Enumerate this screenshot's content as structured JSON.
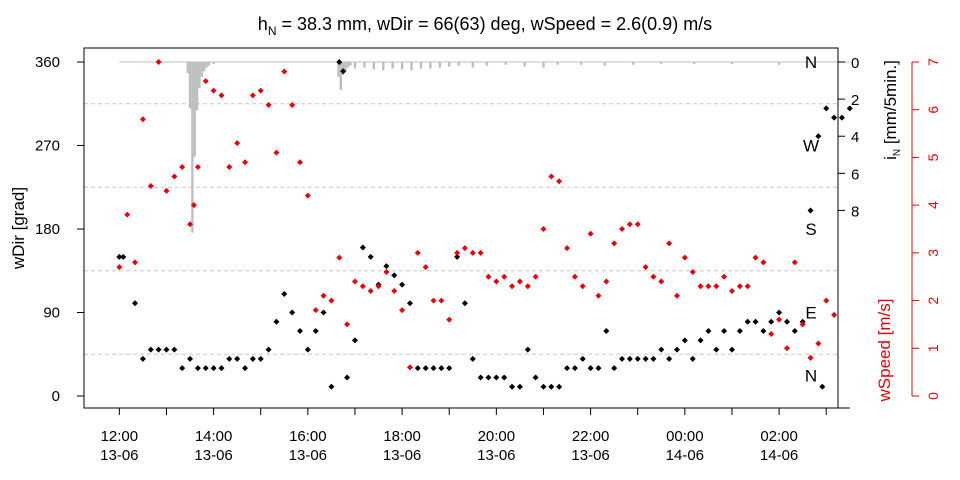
{
  "chart_data": {
    "type": "scatter",
    "title": {
      "main": "h",
      "sub": "N",
      "rest": " = 38.3 mm, wDir = 66(63) deg, wSpeed = 2.6(0.9) m/s"
    },
    "ylabel_left": "wDir [grad]",
    "ylabel_right_red": "wSpeed [m/s]",
    "ylabel_right_rain": {
      "main": "i",
      "sub": "N",
      "rest": " [mm/5min.]"
    },
    "x_ticks": [
      {
        "hour": 0,
        "l1": "12:00",
        "l2": "13-06"
      },
      {
        "hour": 2,
        "l1": "14:00",
        "l2": "13-06"
      },
      {
        "hour": 4,
        "l1": "16:00",
        "l2": "13-06"
      },
      {
        "hour": 6,
        "l1": "18:00",
        "l2": "13-06"
      },
      {
        "hour": 8,
        "l1": "20:00",
        "l2": "13-06"
      },
      {
        "hour": 10,
        "l1": "22:00",
        "l2": "13-06"
      },
      {
        "hour": 12,
        "l1": "00:00",
        "l2": "14-06"
      },
      {
        "hour": 14,
        "l1": "02:00",
        "l2": "14-06"
      }
    ],
    "x_range_hours": [
      -0.75,
      15.25
    ],
    "wdir_ticks": [
      0,
      90,
      180,
      270,
      360
    ],
    "wdir_range": [
      0,
      360
    ],
    "rain_ticks": [
      0,
      2,
      4,
      6,
      8
    ],
    "rain_range": [
      0,
      18
    ],
    "speed_ticks": [
      0,
      1,
      2,
      3,
      4,
      5,
      6,
      7
    ],
    "speed_range": [
      0,
      7
    ],
    "compass_labels": [
      {
        "deg": 22,
        "label": "N"
      },
      {
        "deg": 90,
        "label": "E"
      },
      {
        "deg": 180,
        "label": "S"
      },
      {
        "deg": 270,
        "label": "W"
      },
      {
        "deg": 360,
        "label": "N"
      }
    ],
    "sector_lines_deg": [
      45,
      135,
      225,
      315
    ],
    "colors": {
      "direction": "#000000",
      "speed": "#e8000b",
      "rain": "#bebebe",
      "grid": "#c8c8c8"
    },
    "wind_direction": [
      [
        0,
        150
      ],
      [
        0.083,
        150
      ],
      [
        0.333,
        100
      ],
      [
        0.5,
        40
      ],
      [
        0.667,
        50
      ],
      [
        0.833,
        50
      ],
      [
        1.0,
        50
      ],
      [
        1.167,
        50
      ],
      [
        1.333,
        30
      ],
      [
        1.5,
        40
      ],
      [
        1.667,
        30
      ],
      [
        1.833,
        30
      ],
      [
        2.0,
        30
      ],
      [
        2.167,
        30
      ],
      [
        2.333,
        40
      ],
      [
        2.5,
        40
      ],
      [
        2.667,
        30
      ],
      [
        2.833,
        40
      ],
      [
        3.0,
        40
      ],
      [
        3.167,
        50
      ],
      [
        3.333,
        80
      ],
      [
        3.5,
        110
      ],
      [
        3.667,
        90
      ],
      [
        3.833,
        70
      ],
      [
        4.0,
        50
      ],
      [
        4.167,
        70
      ],
      [
        4.333,
        90
      ],
      [
        4.5,
        10
      ],
      [
        4.667,
        360
      ],
      [
        4.75,
        350
      ],
      [
        4.833,
        20
      ],
      [
        5.0,
        60
      ],
      [
        5.167,
        160
      ],
      [
        5.333,
        150
      ],
      [
        5.5,
        120
      ],
      [
        5.667,
        140
      ],
      [
        5.833,
        130
      ],
      [
        6.0,
        120
      ],
      [
        6.167,
        100
      ],
      [
        6.333,
        30
      ],
      [
        6.5,
        30
      ],
      [
        6.667,
        30
      ],
      [
        6.833,
        30
      ],
      [
        7.0,
        30
      ],
      [
        7.167,
        150
      ],
      [
        7.333,
        100
      ],
      [
        7.5,
        40
      ],
      [
        7.667,
        20
      ],
      [
        7.833,
        20
      ],
      [
        8.0,
        20
      ],
      [
        8.167,
        20
      ],
      [
        8.333,
        10
      ],
      [
        8.5,
        10
      ],
      [
        8.667,
        50
      ],
      [
        8.833,
        20
      ],
      [
        9.0,
        10
      ],
      [
        9.167,
        10
      ],
      [
        9.333,
        10
      ],
      [
        9.5,
        30
      ],
      [
        9.667,
        30
      ],
      [
        9.833,
        40
      ],
      [
        10.0,
        30
      ],
      [
        10.167,
        30
      ],
      [
        10.333,
        70
      ],
      [
        10.5,
        30
      ],
      [
        10.667,
        40
      ],
      [
        10.833,
        40
      ],
      [
        11.0,
        40
      ],
      [
        11.167,
        40
      ],
      [
        11.333,
        40
      ],
      [
        11.5,
        50
      ],
      [
        11.667,
        40
      ],
      [
        11.833,
        50
      ],
      [
        12.0,
        60
      ],
      [
        12.167,
        40
      ],
      [
        12.333,
        60
      ],
      [
        12.5,
        70
      ],
      [
        12.667,
        50
      ],
      [
        12.833,
        70
      ],
      [
        13.0,
        50
      ],
      [
        13.167,
        70
      ],
      [
        13.333,
        80
      ],
      [
        13.5,
        80
      ],
      [
        13.667,
        70
      ],
      [
        13.833,
        80
      ],
      [
        14.0,
        90
      ],
      [
        14.167,
        80
      ],
      [
        14.333,
        70
      ],
      [
        14.5,
        80
      ],
      [
        14.667,
        200
      ],
      [
        14.833,
        280
      ],
      [
        14.917,
        10
      ],
      [
        15.0,
        310
      ],
      [
        15.167,
        300
      ],
      [
        15.333,
        300
      ],
      [
        15.5,
        310
      ]
    ],
    "wind_speed": [
      [
        0,
        2.7
      ],
      [
        0.167,
        3.8
      ],
      [
        0.333,
        2.8
      ],
      [
        0.5,
        5.8
      ],
      [
        0.667,
        4.4
      ],
      [
        0.833,
        7.0
      ],
      [
        1.0,
        4.3
      ],
      [
        1.167,
        4.6
      ],
      [
        1.333,
        4.8
      ],
      [
        1.5,
        3.6
      ],
      [
        1.583,
        4.0
      ],
      [
        1.667,
        4.8
      ],
      [
        1.833,
        6.6
      ],
      [
        2.0,
        6.4
      ],
      [
        2.167,
        6.3
      ],
      [
        2.333,
        4.8
      ],
      [
        2.5,
        5.3
      ],
      [
        2.667,
        4.9
      ],
      [
        2.833,
        6.3
      ],
      [
        3.0,
        6.4
      ],
      [
        3.167,
        6.1
      ],
      [
        3.333,
        5.1
      ],
      [
        3.5,
        6.8
      ],
      [
        3.667,
        6.1
      ],
      [
        3.833,
        4.9
      ],
      [
        4.0,
        4.2
      ],
      [
        4.167,
        1.8
      ],
      [
        4.333,
        2.1
      ],
      [
        4.5,
        2.0
      ],
      [
        4.667,
        2.9
      ],
      [
        4.833,
        1.5
      ],
      [
        5.0,
        2.4
      ],
      [
        5.167,
        2.3
      ],
      [
        5.333,
        2.2
      ],
      [
        5.5,
        2.3
      ],
      [
        5.667,
        2.6
      ],
      [
        5.833,
        2.2
      ],
      [
        6.0,
        1.8
      ],
      [
        6.167,
        0.6
      ],
      [
        6.333,
        3.0
      ],
      [
        6.5,
        2.7
      ],
      [
        6.667,
        2.0
      ],
      [
        6.833,
        2.0
      ],
      [
        7.0,
        1.6
      ],
      [
        7.167,
        3.0
      ],
      [
        7.333,
        3.1
      ],
      [
        7.5,
        3.0
      ],
      [
        7.667,
        3.0
      ],
      [
        7.833,
        2.5
      ],
      [
        8.0,
        2.4
      ],
      [
        8.167,
        2.5
      ],
      [
        8.333,
        2.3
      ],
      [
        8.5,
        2.4
      ],
      [
        8.667,
        2.3
      ],
      [
        8.833,
        2.5
      ],
      [
        9.0,
        3.5
      ],
      [
        9.167,
        4.6
      ],
      [
        9.333,
        4.5
      ],
      [
        9.5,
        3.1
      ],
      [
        9.667,
        2.5
      ],
      [
        9.833,
        2.3
      ],
      [
        10.0,
        3.4
      ],
      [
        10.167,
        2.1
      ],
      [
        10.333,
        2.4
      ],
      [
        10.5,
        3.2
      ],
      [
        10.667,
        3.5
      ],
      [
        10.833,
        3.6
      ],
      [
        11.0,
        3.6
      ],
      [
        11.167,
        2.7
      ],
      [
        11.333,
        2.5
      ],
      [
        11.5,
        2.4
      ],
      [
        11.667,
        3.2
      ],
      [
        11.833,
        2.1
      ],
      [
        12.0,
        2.9
      ],
      [
        12.167,
        2.6
      ],
      [
        12.333,
        2.3
      ],
      [
        12.5,
        2.3
      ],
      [
        12.667,
        2.3
      ],
      [
        12.833,
        2.5
      ],
      [
        13.0,
        2.2
      ],
      [
        13.167,
        2.3
      ],
      [
        13.333,
        2.3
      ],
      [
        13.5,
        2.9
      ],
      [
        13.667,
        2.8
      ],
      [
        13.833,
        1.3
      ],
      [
        14.0,
        1.6
      ],
      [
        14.167,
        1.0
      ],
      [
        14.333,
        2.8
      ],
      [
        14.5,
        1.5
      ],
      [
        14.667,
        0.8
      ],
      [
        14.833,
        1.1
      ],
      [
        15.0,
        2.0
      ],
      [
        15.167,
        1.7
      ]
    ],
    "rain": [
      [
        1.45,
        0.6
      ],
      [
        1.5,
        2.5
      ],
      [
        1.55,
        9.2
      ],
      [
        1.6,
        5.1
      ],
      [
        1.65,
        2.6
      ],
      [
        1.7,
        1.4
      ],
      [
        1.75,
        0.8
      ],
      [
        1.8,
        0.5
      ],
      [
        1.85,
        0.3
      ],
      [
        1.9,
        0.2
      ],
      [
        2.0,
        0.1
      ],
      [
        4.65,
        0.8
      ],
      [
        4.7,
        1.5
      ],
      [
        4.75,
        0.7
      ],
      [
        4.8,
        0.5
      ],
      [
        4.85,
        0.3
      ],
      [
        4.9,
        0.2
      ],
      [
        5.0,
        0.35
      ],
      [
        5.2,
        0.3
      ],
      [
        5.4,
        0.4
      ],
      [
        5.6,
        0.45
      ],
      [
        5.8,
        0.35
      ],
      [
        6.0,
        0.4
      ],
      [
        6.2,
        0.45
      ],
      [
        6.4,
        0.35
      ],
      [
        6.6,
        0.35
      ],
      [
        6.8,
        0.3
      ],
      [
        7.0,
        0.25
      ],
      [
        7.2,
        0.2
      ],
      [
        7.5,
        0.3
      ],
      [
        7.8,
        0.2
      ],
      [
        8.2,
        0.15
      ],
      [
        8.6,
        0.25
      ],
      [
        9.0,
        0.3
      ],
      [
        9.3,
        0.15
      ],
      [
        9.8,
        0.15
      ],
      [
        10.3,
        0.2
      ],
      [
        10.9,
        0.15
      ],
      [
        11.5,
        0.1
      ],
      [
        12.2,
        0.1
      ],
      [
        13.0,
        0.1
      ],
      [
        14.0,
        0.15
      ]
    ]
  }
}
